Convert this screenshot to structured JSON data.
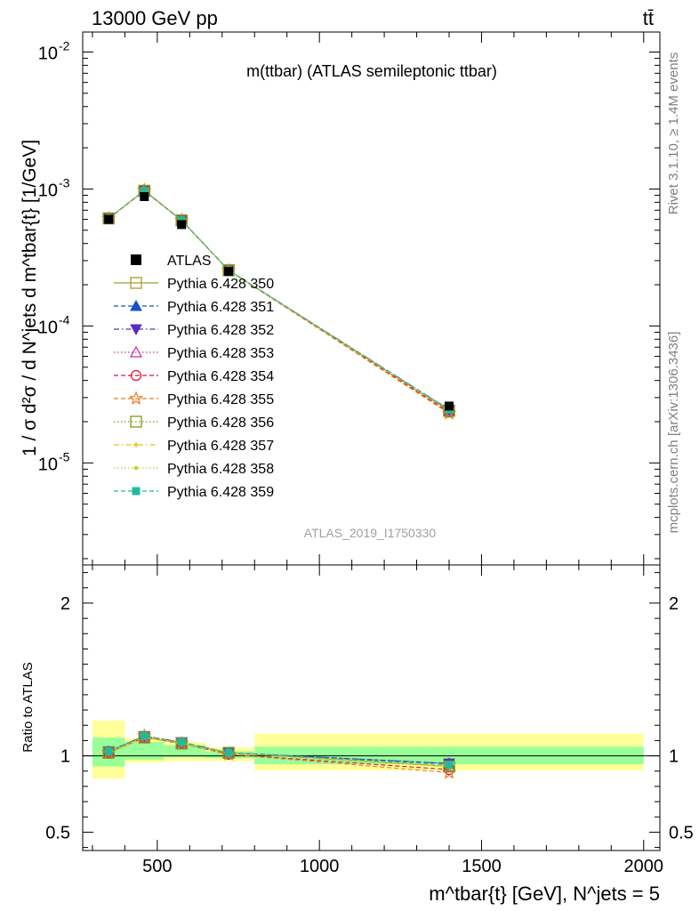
{
  "header": {
    "left": "13000 GeV pp",
    "right": "tt̄"
  },
  "side_labels": {
    "rivet": "Rivet 3.1.10, ≥ 1.4M events",
    "mcplots": "mcplots.cern.ch [arXiv:1306.3436]"
  },
  "chart_data": [
    {
      "type": "line",
      "title": "m(ttbar) (ATLAS semileptonic ttbar)",
      "watermark": "ATLAS_2019_I1750330",
      "ylabel": "1 / σ d²σ / d N^jets d m^tbar{t} [1/GeV]",
      "yscale": "log",
      "xlim": [
        270,
        2050
      ],
      "ylim": [
        1.8e-06,
        0.014
      ],
      "ytick_labels": [
        "10^-5",
        "10^-4",
        "10^-3",
        "10^-2"
      ],
      "x": [
        350,
        460,
        575,
        720,
        1400
      ],
      "data": {
        "name": "ATLAS",
        "values": [
          0.0006,
          0.00088,
          0.00055,
          0.00025,
          2.6e-05
        ]
      },
      "series": [
        {
          "name": "Pythia 6.428 350",
          "color": "#a59f33",
          "marker": "open-square",
          "dash": "solid",
          "values": [
            0.00061,
            0.00097,
            0.00059,
            0.000255,
            2.4e-05
          ]
        },
        {
          "name": "Pythia 6.428 351",
          "color": "#1a4fcc",
          "marker": "filled-triangle-up",
          "dash": "dashed",
          "values": [
            0.00061,
            0.00097,
            0.00059,
            0.000255,
            2.45e-05
          ]
        },
        {
          "name": "Pythia 6.428 352",
          "color": "#5a2dbb",
          "marker": "filled-triangle-down",
          "dash": "dashdot",
          "values": [
            0.00061,
            0.000975,
            0.00059,
            0.000255,
            2.45e-05
          ]
        },
        {
          "name": "Pythia 6.428 353",
          "color": "#c0309a",
          "marker": "open-triangle-up",
          "dash": "dotted",
          "values": [
            0.00061,
            0.00097,
            0.00059,
            0.000255,
            2.4e-05
          ]
        },
        {
          "name": "Pythia 6.428 354",
          "color": "#dd1133",
          "marker": "open-circle",
          "dash": "dashed",
          "values": [
            0.00061,
            0.00097,
            0.00059,
            0.000255,
            2.35e-05
          ]
        },
        {
          "name": "Pythia 6.428 355",
          "color": "#ee7722",
          "marker": "open-star",
          "dash": "dashed",
          "values": [
            0.00061,
            0.00098,
            0.00059,
            0.000255,
            2.3e-05
          ]
        },
        {
          "name": "Pythia 6.428 356",
          "color": "#7f9a1a",
          "marker": "open-square",
          "dash": "dotted",
          "values": [
            0.00061,
            0.00097,
            0.00059,
            0.000255,
            2.4e-05
          ]
        },
        {
          "name": "Pythia 6.428 357",
          "color": "#e6c21a",
          "marker": "small-cross",
          "dash": "dashdot",
          "values": [
            0.00061,
            0.00097,
            0.00059,
            0.000255,
            2.4e-05
          ]
        },
        {
          "name": "Pythia 6.428 358",
          "color": "#c8d022",
          "marker": "small-dot",
          "dash": "dotted",
          "values": [
            0.00061,
            0.00097,
            0.00059,
            0.000255,
            2.4e-05
          ]
        },
        {
          "name": "Pythia 6.428 359",
          "color": "#22bb99",
          "marker": "filled-square",
          "dash": "dashed",
          "values": [
            0.00061,
            0.00097,
            0.00059,
            0.000255,
            2.45e-05
          ]
        }
      ]
    },
    {
      "type": "line",
      "ylabel": "Ratio to ATLAS",
      "xlabel": "m^tbar{t} [GeV], N^jets = 5",
      "xlim": [
        270,
        2050
      ],
      "ylim": [
        0.38,
        2.25
      ],
      "x_ticks": [
        500,
        1000,
        1500,
        2000
      ],
      "y_ticks": [
        0.5,
        1,
        2
      ],
      "x": [
        350,
        460,
        575,
        720,
        1400
      ],
      "bands": [
        {
          "xlo": 300,
          "xhi": 400,
          "inner": [
            0.93,
            1.12
          ],
          "outer": [
            0.85,
            1.23
          ]
        },
        {
          "xlo": 400,
          "xhi": 520,
          "inner": [
            0.975,
            1.09
          ],
          "outer": [
            0.955,
            1.115
          ]
        },
        {
          "xlo": 520,
          "xhi": 650,
          "inner": [
            0.99,
            1.07
          ],
          "outer": [
            0.965,
            1.09
          ]
        },
        {
          "xlo": 650,
          "xhi": 800,
          "inner": [
            0.985,
            1.03
          ],
          "outer": [
            0.965,
            1.055
          ]
        },
        {
          "xlo": 800,
          "xhi": 2000,
          "inner": [
            0.945,
            1.06
          ],
          "outer": [
            0.905,
            1.145
          ]
        }
      ],
      "series_ratios": [
        [
          1.02,
          1.12,
          1.08,
          1.02,
          0.93
        ],
        [
          1.03,
          1.13,
          1.08,
          1.02,
          0.95
        ],
        [
          1.03,
          1.13,
          1.09,
          1.02,
          0.95
        ],
        [
          1.02,
          1.12,
          1.08,
          1.02,
          0.93
        ],
        [
          1.02,
          1.12,
          1.08,
          1.01,
          0.91
        ],
        [
          1.02,
          1.13,
          1.08,
          1.01,
          0.89
        ],
        [
          1.02,
          1.12,
          1.08,
          1.02,
          0.93
        ],
        [
          1.02,
          1.12,
          1.08,
          1.02,
          0.93
        ],
        [
          1.02,
          1.12,
          1.08,
          1.02,
          0.93
        ],
        [
          1.03,
          1.13,
          1.09,
          1.02,
          0.94
        ]
      ]
    }
  ]
}
